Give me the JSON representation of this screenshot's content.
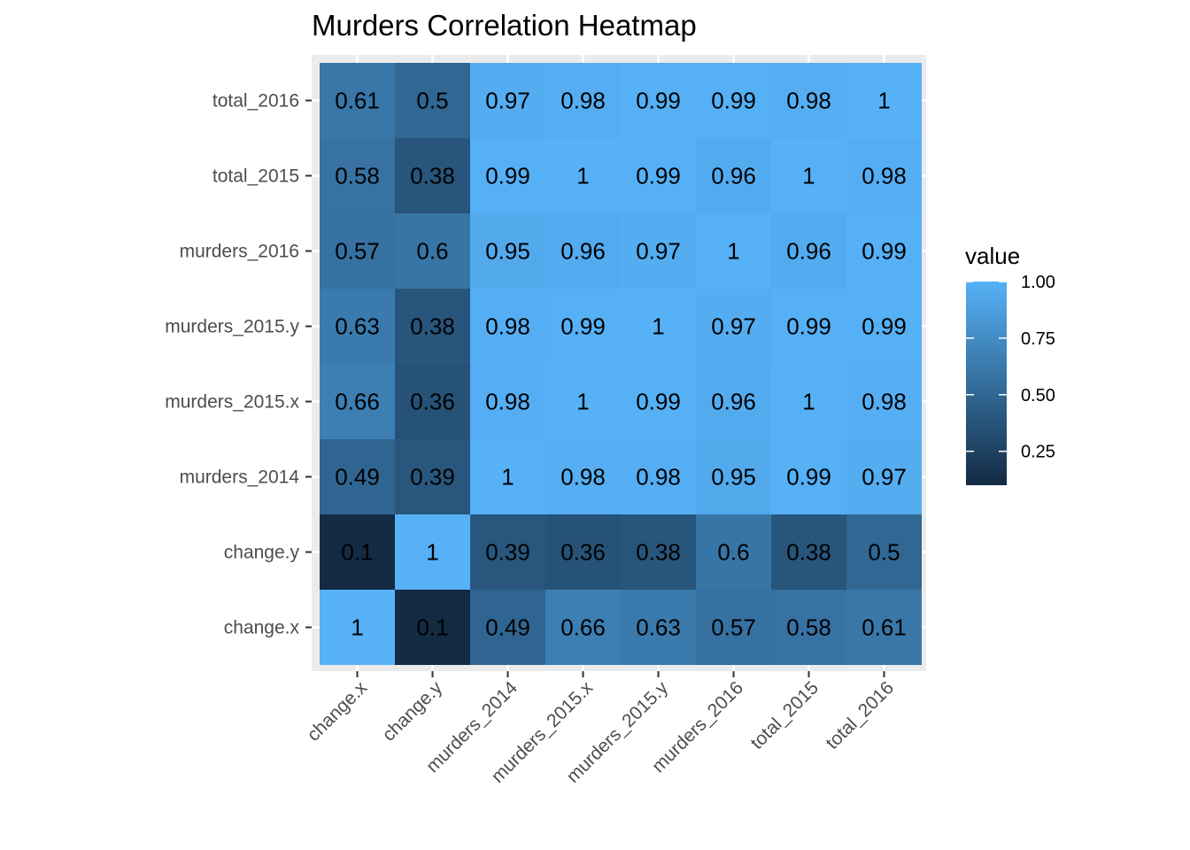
{
  "chart_data": {
    "type": "heatmap",
    "title": "Murders Correlation Heatmap",
    "xlabel": "",
    "ylabel": "",
    "x_categories": [
      "change.x",
      "change.y",
      "murders_2014",
      "murders_2015.x",
      "murders_2015.y",
      "murders_2016",
      "total_2015",
      "total_2016"
    ],
    "y_categories": [
      "change.x",
      "change.y",
      "murders_2014",
      "murders_2015.x",
      "murders_2015.y",
      "murders_2016",
      "total_2015",
      "total_2016"
    ],
    "matrix": [
      [
        1,
        0.1,
        0.49,
        0.66,
        0.63,
        0.57,
        0.58,
        0.61
      ],
      [
        0.1,
        1,
        0.39,
        0.36,
        0.38,
        0.6,
        0.38,
        0.5
      ],
      [
        0.49,
        0.39,
        1,
        0.98,
        0.98,
        0.95,
        0.99,
        0.97
      ],
      [
        0.66,
        0.36,
        0.98,
        1,
        0.99,
        0.96,
        1,
        0.98
      ],
      [
        0.63,
        0.38,
        0.98,
        0.99,
        1,
        0.97,
        0.99,
        0.99
      ],
      [
        0.57,
        0.6,
        0.95,
        0.96,
        0.97,
        1,
        0.96,
        0.99
      ],
      [
        0.58,
        0.38,
        0.99,
        1,
        0.99,
        0.96,
        1,
        0.98
      ],
      [
        0.61,
        0.5,
        0.97,
        0.98,
        0.99,
        0.99,
        0.98,
        1
      ]
    ],
    "legend": {
      "title": "value",
      "position": "right",
      "breaks": [
        0.25,
        0.5,
        0.75,
        1.0
      ],
      "break_labels": [
        "0.25",
        "0.50",
        "0.75",
        "1.00"
      ],
      "range": [
        0.1,
        1.0
      ]
    },
    "colors": {
      "low": "#132B43",
      "high": "#56B1F7",
      "panel_background": "#EBEBEB",
      "grid": "#FFFFFF"
    }
  }
}
